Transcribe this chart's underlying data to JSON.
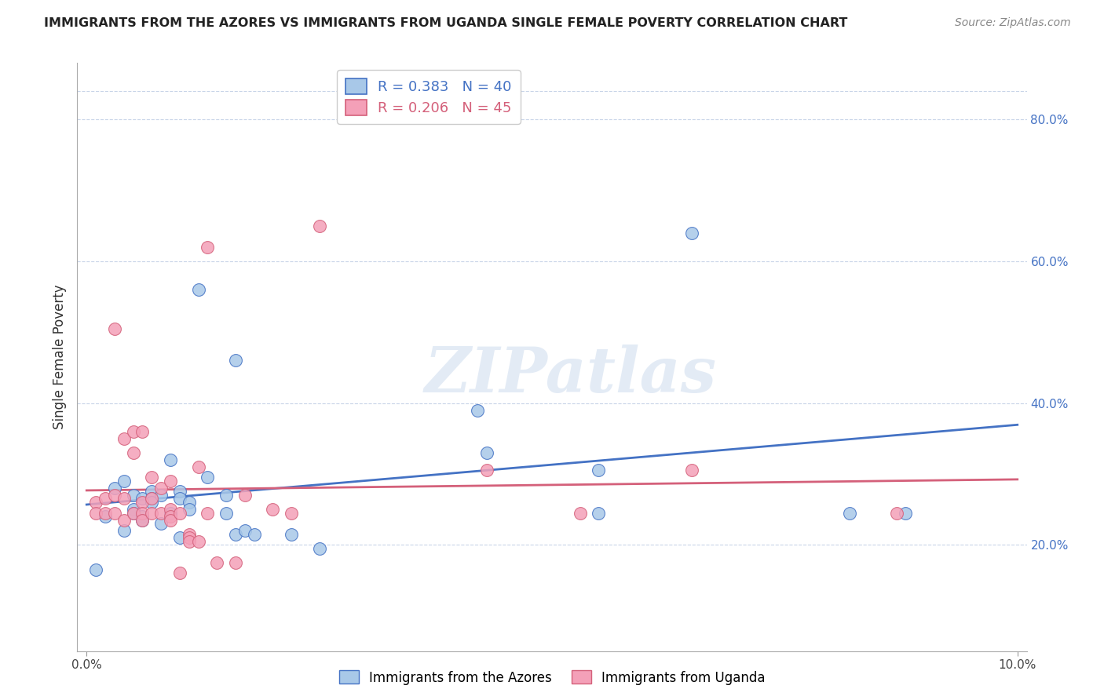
{
  "title": "IMMIGRANTS FROM THE AZORES VS IMMIGRANTS FROM UGANDA SINGLE FEMALE POVERTY CORRELATION CHART",
  "source": "Source: ZipAtlas.com",
  "ylabel": "Single Female Poverty",
  "watermark": "ZIPatlas",
  "xlim": [
    -0.001,
    0.101
  ],
  "ylim": [
    0.05,
    0.88
  ],
  "yticks_right": [
    0.2,
    0.4,
    0.6,
    0.8
  ],
  "ytick_labels_right": [
    "20.0%",
    "40.0%",
    "60.0%",
    "80.0%"
  ],
  "legend_label1": "Immigrants from the Azores",
  "legend_label2": "Immigrants from Uganda",
  "azores_color": "#A8C8E8",
  "uganda_color": "#F4A0B8",
  "azores_line_color": "#4472C4",
  "uganda_line_color": "#D4607A",
  "background_color": "#FFFFFF",
  "grid_color": "#C8D4E8",
  "azores_R": 0.383,
  "azores_N": 40,
  "uganda_R": 0.206,
  "uganda_N": 45,
  "azores_x": [
    0.001,
    0.002,
    0.003,
    0.004,
    0.004,
    0.005,
    0.005,
    0.005,
    0.006,
    0.006,
    0.006,
    0.007,
    0.007,
    0.007,
    0.008,
    0.008,
    0.009,
    0.009,
    0.01,
    0.01,
    0.01,
    0.011,
    0.011,
    0.012,
    0.013,
    0.015,
    0.015,
    0.016,
    0.016,
    0.017,
    0.018,
    0.022,
    0.025,
    0.042,
    0.043,
    0.055,
    0.055,
    0.065,
    0.082,
    0.088
  ],
  "azores_y": [
    0.165,
    0.24,
    0.28,
    0.29,
    0.22,
    0.27,
    0.25,
    0.245,
    0.265,
    0.24,
    0.235,
    0.275,
    0.265,
    0.26,
    0.27,
    0.23,
    0.32,
    0.245,
    0.275,
    0.265,
    0.21,
    0.26,
    0.25,
    0.56,
    0.295,
    0.27,
    0.245,
    0.46,
    0.215,
    0.22,
    0.215,
    0.215,
    0.195,
    0.39,
    0.33,
    0.305,
    0.245,
    0.64,
    0.245,
    0.245
  ],
  "uganda_x": [
    0.001,
    0.001,
    0.002,
    0.002,
    0.003,
    0.003,
    0.003,
    0.004,
    0.004,
    0.004,
    0.005,
    0.005,
    0.005,
    0.006,
    0.006,
    0.006,
    0.006,
    0.007,
    0.007,
    0.007,
    0.008,
    0.008,
    0.009,
    0.009,
    0.009,
    0.009,
    0.01,
    0.01,
    0.011,
    0.011,
    0.011,
    0.012,
    0.012,
    0.013,
    0.013,
    0.014,
    0.016,
    0.017,
    0.02,
    0.022,
    0.025,
    0.043,
    0.053,
    0.065,
    0.087
  ],
  "uganda_y": [
    0.26,
    0.245,
    0.265,
    0.245,
    0.505,
    0.27,
    0.245,
    0.35,
    0.265,
    0.235,
    0.36,
    0.33,
    0.245,
    0.36,
    0.26,
    0.245,
    0.235,
    0.295,
    0.265,
    0.245,
    0.28,
    0.245,
    0.29,
    0.25,
    0.24,
    0.235,
    0.16,
    0.245,
    0.215,
    0.21,
    0.205,
    0.31,
    0.205,
    0.62,
    0.245,
    0.175,
    0.175,
    0.27,
    0.25,
    0.245,
    0.65,
    0.305,
    0.245,
    0.305,
    0.245
  ]
}
